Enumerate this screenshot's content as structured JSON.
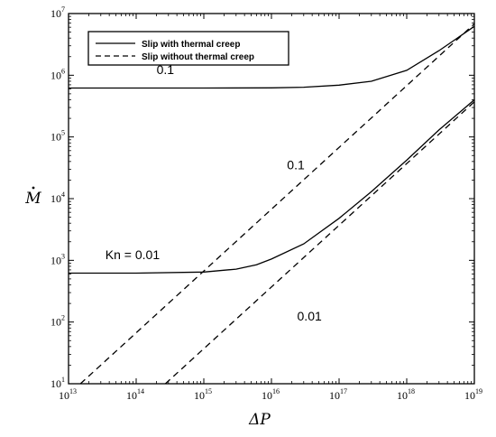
{
  "chart_data": {
    "type": "line",
    "title": "",
    "xlabel": "ΔP",
    "ylabel": "M",
    "x_scale": "log",
    "y_scale": "log",
    "xlim": [
      10000000000000.0,
      1e+19
    ],
    "ylim": [
      10,
      10000000.0
    ],
    "grid": false,
    "legend_position": "top-left",
    "x_ticks": [
      {
        "base": "10",
        "exp": "13",
        "value": 10000000000000.0
      },
      {
        "base": "10",
        "exp": "14",
        "value": 100000000000000.0
      },
      {
        "base": "10",
        "exp": "15",
        "value": 1000000000000000.0
      },
      {
        "base": "10",
        "exp": "16",
        "value": 1e+16
      },
      {
        "base": "10",
        "exp": "17",
        "value": 1e+17
      },
      {
        "base": "10",
        "exp": "18",
        "value": 1e+18
      },
      {
        "base": "10",
        "exp": "19",
        "value": 1e+19
      }
    ],
    "y_ticks": [
      {
        "base": "10",
        "exp": "1",
        "value": 10
      },
      {
        "base": "10",
        "exp": "2",
        "value": 100
      },
      {
        "base": "10",
        "exp": "3",
        "value": 1000
      },
      {
        "base": "10",
        "exp": "4",
        "value": 10000
      },
      {
        "base": "10",
        "exp": "5",
        "value": 100000
      },
      {
        "base": "10",
        "exp": "6",
        "value": 1000000
      },
      {
        "base": "10",
        "exp": "7",
        "value": 10000000
      }
    ],
    "legend": [
      {
        "label": "Slip with thermal creep",
        "style": "solid"
      },
      {
        "label": "Slip without thermal creep",
        "style": "dashed"
      }
    ],
    "series": [
      {
        "style": "solid",
        "kn": 0.1,
        "points": [
          [
            10000000000000.0,
            620000
          ],
          [
            100000000000000.0,
            620000
          ],
          [
            1000000000000000.0,
            620000
          ],
          [
            1e+16,
            625000
          ],
          [
            3e+16,
            640000
          ],
          [
            1e+17,
            690000
          ],
          [
            3e+17,
            800000
          ],
          [
            1e+18,
            1200000
          ],
          [
            3e+18,
            2500000
          ],
          [
            1e+19,
            6200000
          ]
        ]
      },
      {
        "style": "dashed",
        "kn": 0.1,
        "points": [
          [
            15000000000000.0,
            10
          ],
          [
            1e+19,
            6800000
          ]
        ]
      },
      {
        "style": "solid",
        "kn": 0.01,
        "points": [
          [
            10000000000000.0,
            620
          ],
          [
            100000000000000.0,
            620
          ],
          [
            1000000000000000.0,
            645
          ],
          [
            3000000000000000.0,
            720
          ],
          [
            6000000000000000.0,
            850
          ],
          [
            1e+16,
            1050
          ],
          [
            3e+16,
            1850
          ],
          [
            1e+17,
            4800
          ],
          [
            3e+17,
            13000
          ],
          [
            1e+18,
            42000
          ],
          [
            3e+18,
            130000
          ],
          [
            1e+19,
            400000
          ]
        ]
      },
      {
        "style": "dashed",
        "kn": 0.01,
        "points": [
          [
            270000000000000.0,
            10
          ],
          [
            1e+19,
            370000
          ]
        ]
      }
    ],
    "annotations": [
      {
        "text": "0.1",
        "x": 200000000000000.0,
        "y": 1050000
      },
      {
        "text": "Kn = 0.01",
        "x": 35000000000000.0,
        "y": 1050
      },
      {
        "text": "0.1",
        "x": 1.7e+16,
        "y": 30000
      },
      {
        "text": "0.01",
        "x": 2.4e+16,
        "y": 105
      }
    ]
  }
}
